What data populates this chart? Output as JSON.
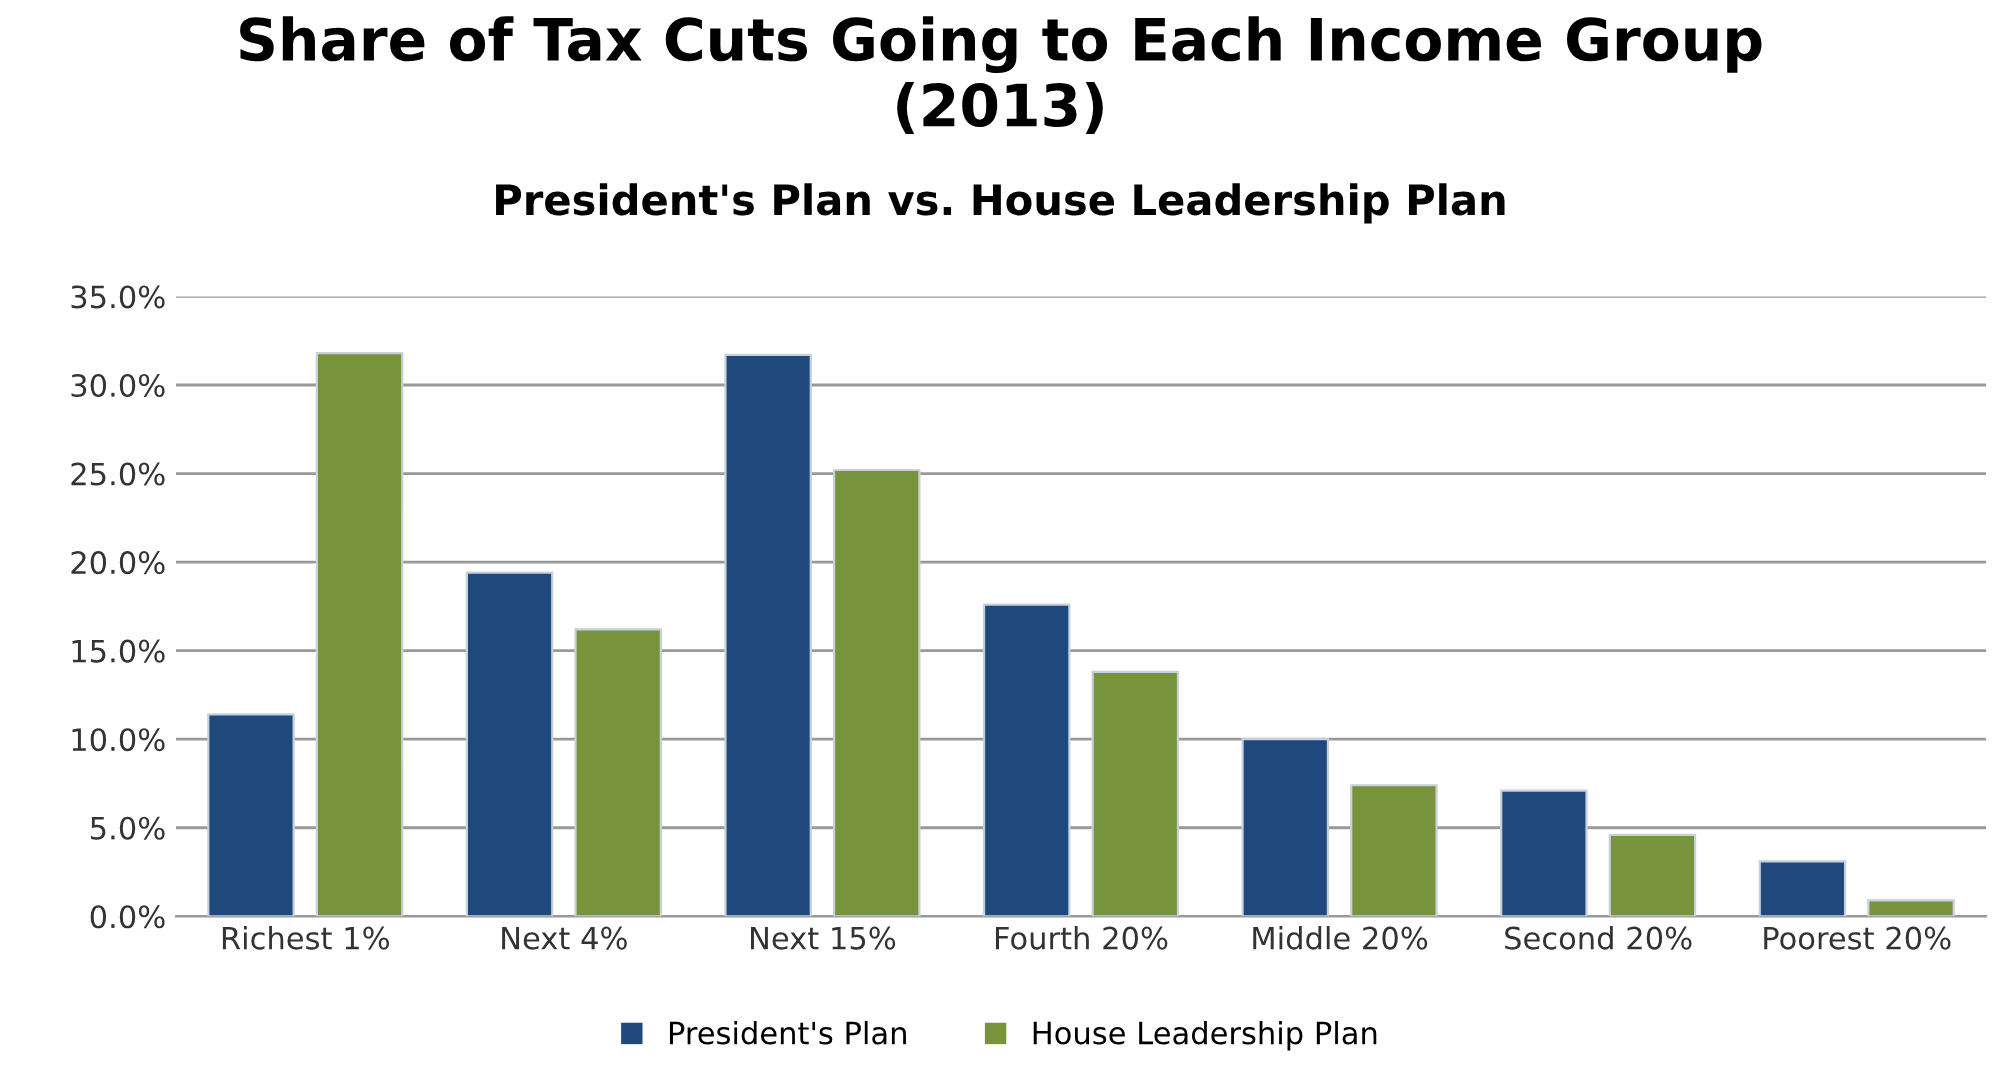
{
  "chart_data": {
    "type": "bar",
    "title": "Share of Tax Cuts Going to Each Income Group\n(2013)",
    "subtitle": "President's Plan vs. House Leadership Plan",
    "categories": [
      "Richest 1%",
      "Next 4%",
      "Next 15%",
      "Fourth 20%",
      "Middle 20%",
      "Second 20%",
      "Poorest 20%"
    ],
    "series": [
      {
        "name": "President's Plan",
        "color": "#1f497d",
        "values": [
          11.4,
          19.4,
          31.7,
          17.6,
          10.0,
          7.1,
          3.1
        ]
      },
      {
        "name": "House Leadership Plan",
        "color": "#77933c",
        "values": [
          31.8,
          16.2,
          25.2,
          13.8,
          7.4,
          4.6,
          0.9
        ]
      }
    ],
    "ylim": [
      0,
      35
    ],
    "yticks": [
      {
        "value": 0,
        "label": "0.0%"
      },
      {
        "value": 5,
        "label": "5.0%"
      },
      {
        "value": 10,
        "label": "10.0%"
      },
      {
        "value": 15,
        "label": "15.0%"
      },
      {
        "value": 20,
        "label": "20.0%"
      },
      {
        "value": 25,
        "label": "25.0%"
      },
      {
        "value": 30,
        "label": "30.0%"
      },
      {
        "value": 35,
        "label": "35.0%"
      }
    ],
    "grid": "y",
    "legend": "bottom"
  }
}
